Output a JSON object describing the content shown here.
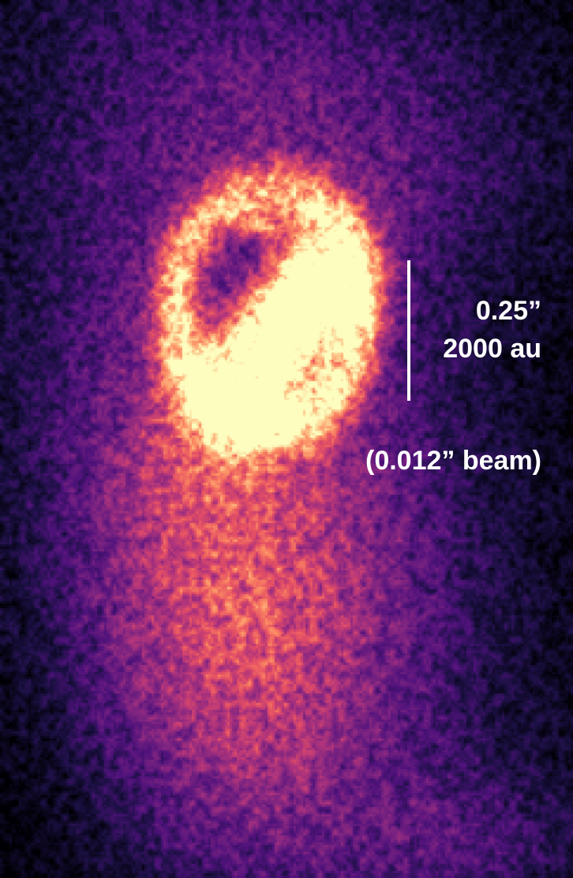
{
  "scale_bar": {
    "angular_size": "0.25”",
    "physical_size": "2000 au"
  },
  "beam_label": "(0.012” beam)",
  "colors": {
    "background": "#000000",
    "label_text": "#ffffff",
    "colormap": [
      "#000004",
      "#2c105c",
      "#711f81",
      "#b63679",
      "#ee605e",
      "#fdae32",
      "#fcfdbf"
    ]
  }
}
